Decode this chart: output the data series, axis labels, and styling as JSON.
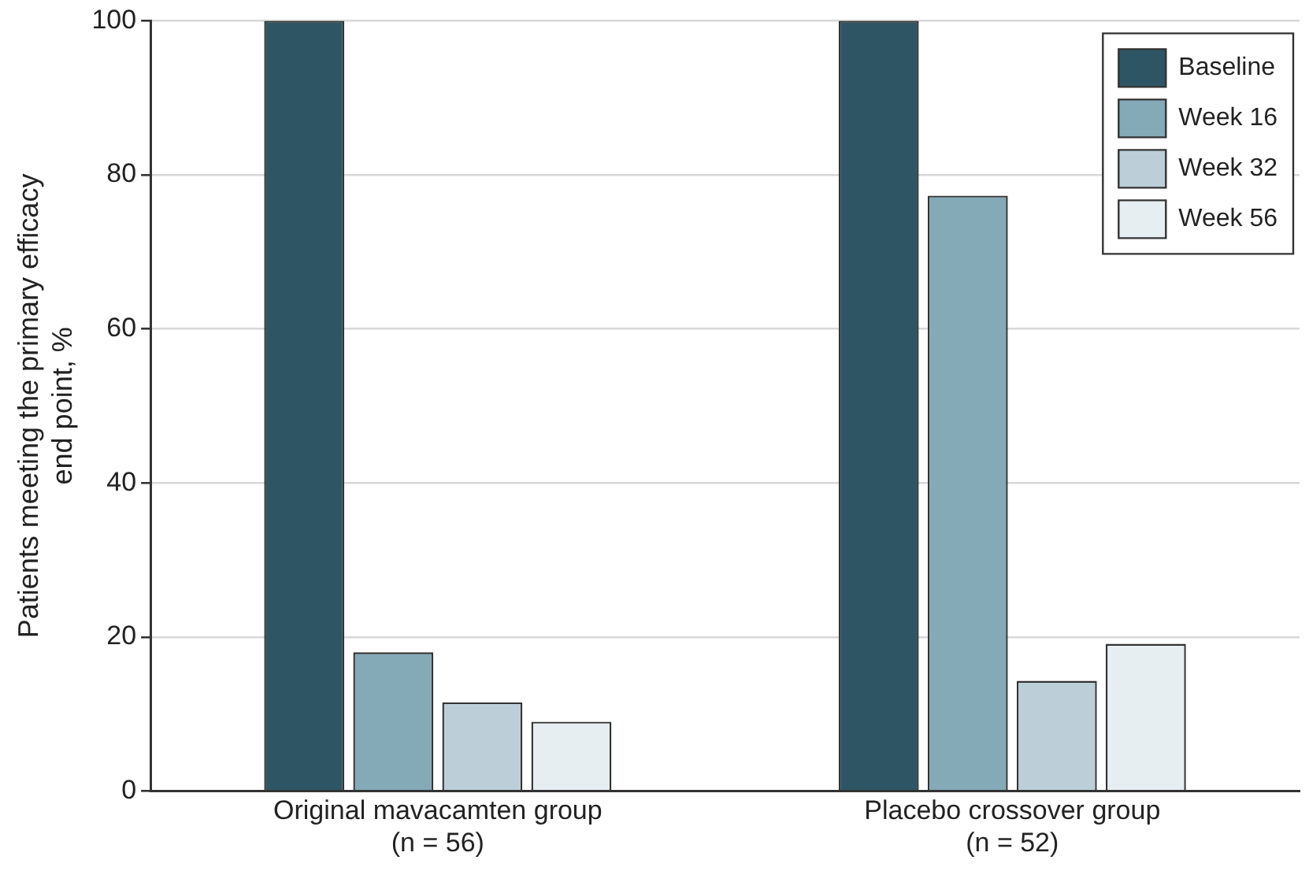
{
  "chart_data": {
    "type": "bar",
    "ylabel": "Patients meeting the primary efficacy end point, %",
    "categories": [
      "Original mavacamten group\n(n = 56)",
      "Placebo crossover group\n(n = 52)"
    ],
    "series": [
      {
        "name": "Baseline",
        "color": "#2e5564",
        "values": [
          100,
          100
        ]
      },
      {
        "name": "Week 16",
        "color": "#84a9b7",
        "values": [
          18,
          77.3
        ]
      },
      {
        "name": "Week 32",
        "color": "#bccfd8",
        "values": [
          11.5,
          14.3
        ]
      },
      {
        "name": "Week 56",
        "color": "#e6eef1",
        "values": [
          9,
          19.1
        ]
      }
    ],
    "ylim": [
      0,
      100
    ],
    "yticks": [
      0,
      20,
      40,
      60,
      80,
      100
    ],
    "grid": "y",
    "legend": "top right"
  }
}
